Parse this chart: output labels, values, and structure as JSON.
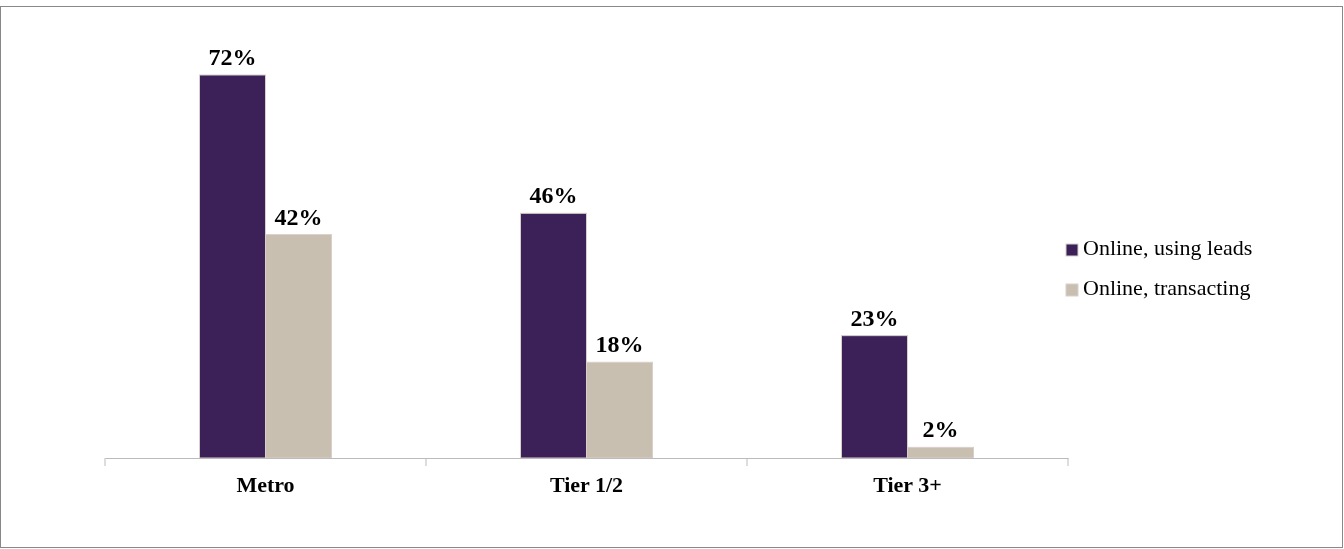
{
  "chart_data": {
    "type": "bar",
    "categories": [
      "Metro",
      "Tier 1/2",
      "Tier 3+"
    ],
    "series": [
      {
        "name": "Online, using leads",
        "color": "#3c2158",
        "values": [
          72,
          46,
          23
        ],
        "value_labels": [
          "72%",
          "46%",
          "23%"
        ]
      },
      {
        "name": "Online, transacting",
        "color": "#c9bfb0",
        "values": [
          42,
          18,
          2
        ],
        "value_labels": [
          "42%",
          "18%",
          "2%"
        ]
      }
    ],
    "legend": "right",
    "tick_labels": "x"
  }
}
